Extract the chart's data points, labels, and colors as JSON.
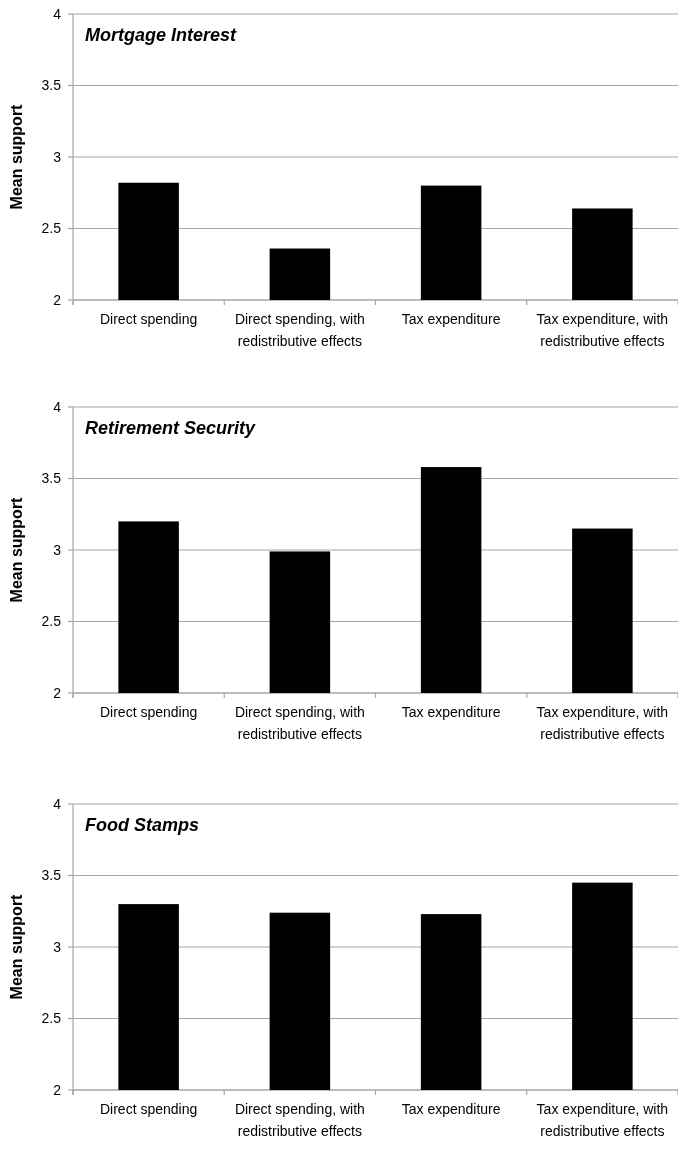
{
  "chart_data": [
    {
      "type": "bar",
      "title": "Mortgage Interest",
      "ylabel": "Mean support",
      "categories": [
        "Direct spending",
        "Direct spending, with redistributive effects",
        "Tax expenditure",
        "Tax expenditure, with redistributive effects"
      ],
      "values": [
        2.82,
        2.36,
        2.8,
        2.64
      ],
      "color": "#000000",
      "ylim": [
        2,
        4
      ],
      "yticks": [
        2,
        2.5,
        3,
        3.5,
        4
      ],
      "grid": "y"
    },
    {
      "type": "bar",
      "title": "Retirement Security",
      "ylabel": "Mean support",
      "categories": [
        "Direct spending",
        "Direct spending, with redistributive effects",
        "Tax expenditure",
        "Tax expenditure, with redistributive effects"
      ],
      "values": [
        3.2,
        2.99,
        3.58,
        3.15
      ],
      "color": "#000000",
      "ylim": [
        2,
        4
      ],
      "yticks": [
        2,
        2.5,
        3,
        3.5,
        4
      ],
      "grid": "y"
    },
    {
      "type": "bar",
      "title": "Food Stamps",
      "ylabel": "Mean support",
      "categories": [
        "Direct spending",
        "Direct spending, with redistributive effects",
        "Tax expenditure",
        "Tax expenditure, with redistributive effects"
      ],
      "values": [
        3.3,
        3.24,
        3.23,
        3.45
      ],
      "color": "#000000",
      "ylim": [
        2,
        4
      ],
      "yticks": [
        2,
        2.5,
        3,
        3.5,
        4
      ],
      "grid": "y"
    }
  ]
}
